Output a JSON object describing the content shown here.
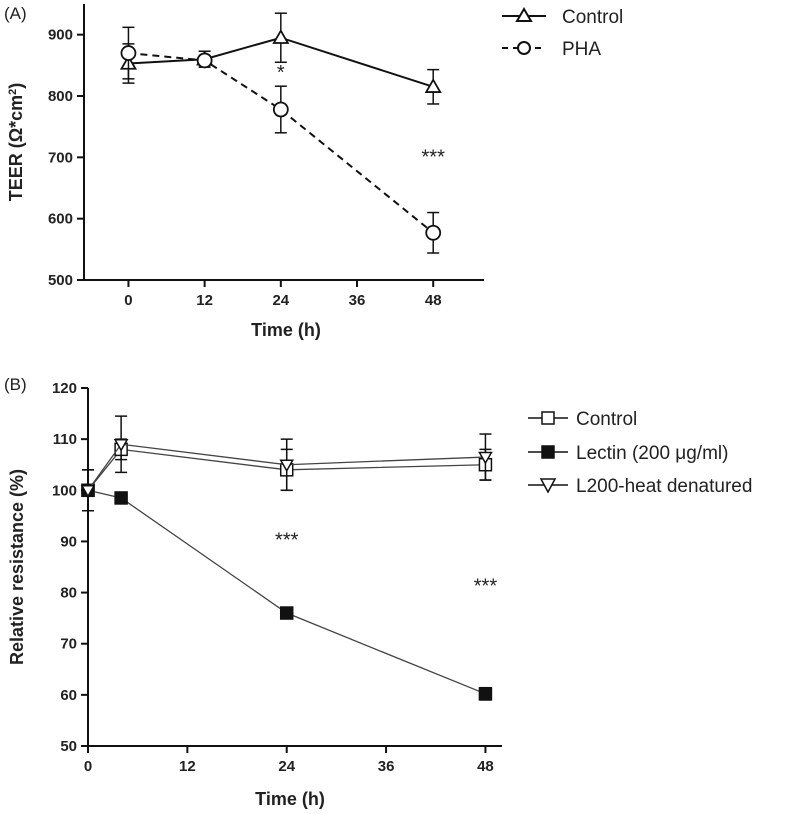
{
  "figure": {
    "panels": [
      "(A)",
      "(B)"
    ]
  },
  "chart_data": [
    {
      "type": "line",
      "panel_label": "(A)",
      "title": "",
      "xlabel": "Time (h)",
      "ylabel": "TEER (Ω*cm²)",
      "ylabel_main": "TEER (Ω*cm",
      "ylabel_sup": "2",
      "ylabel_close": ")",
      "xlim": [
        -7,
        56
      ],
      "ylim": [
        500,
        950
      ],
      "xticks": [
        0,
        12,
        24,
        36,
        48
      ],
      "yticks": [
        500,
        600,
        700,
        800,
        900
      ],
      "grid": false,
      "legend_position": "top-right",
      "series": [
        {
          "name": "Control",
          "marker": "triangle-open",
          "line": "solid",
          "x": [
            0,
            12,
            24,
            48
          ],
          "values": [
            853,
            860,
            895,
            815
          ],
          "errors": [
            32,
            13,
            40,
            28
          ]
        },
        {
          "name": "PHA",
          "marker": "circle-open",
          "line": "dashed",
          "x": [
            0,
            12,
            24,
            48
          ],
          "values": [
            870,
            858,
            778,
            577
          ],
          "errors": [
            42,
            8,
            38,
            33
          ]
        }
      ],
      "annotations": [
        {
          "text": "*",
          "x": 24,
          "y": 828
        },
        {
          "text": "***",
          "x": 48,
          "y": 690
        }
      ]
    },
    {
      "type": "line",
      "panel_label": "(B)",
      "title": "",
      "xlabel": "Time (h)",
      "ylabel": "Relative resistance (%)",
      "xlim": [
        0,
        50
      ],
      "ylim": [
        50,
        120
      ],
      "xticks": [
        0,
        12,
        24,
        36,
        48
      ],
      "yticks": [
        50,
        60,
        70,
        80,
        90,
        100,
        110,
        120
      ],
      "grid": false,
      "legend_position": "right",
      "series": [
        {
          "name": "Control",
          "marker": "square-open",
          "line": "solid",
          "x": [
            0,
            4,
            24,
            48
          ],
          "values": [
            100,
            108,
            104,
            105
          ],
          "errors": [
            4,
            2,
            4,
            3
          ]
        },
        {
          "name": "Lectin (200 μg/ml)",
          "marker": "square-filled",
          "line": "solid",
          "x": [
            0,
            4,
            24,
            48
          ],
          "values": [
            100,
            98.5,
            76,
            60.2
          ],
          "errors": [
            4,
            1,
            0.8,
            1.2
          ]
        },
        {
          "name": "L200-heat denatured",
          "marker": "triangle-down-open",
          "line": "solid",
          "x": [
            0,
            4,
            24,
            48
          ],
          "values": [
            100,
            109,
            105,
            106.5
          ],
          "errors": [
            4,
            5.5,
            5,
            4.5
          ]
        }
      ],
      "annotations": [
        {
          "text": "***",
          "x": 24,
          "y": 89
        },
        {
          "text": "***",
          "x": 48,
          "y": 80
        }
      ]
    }
  ]
}
